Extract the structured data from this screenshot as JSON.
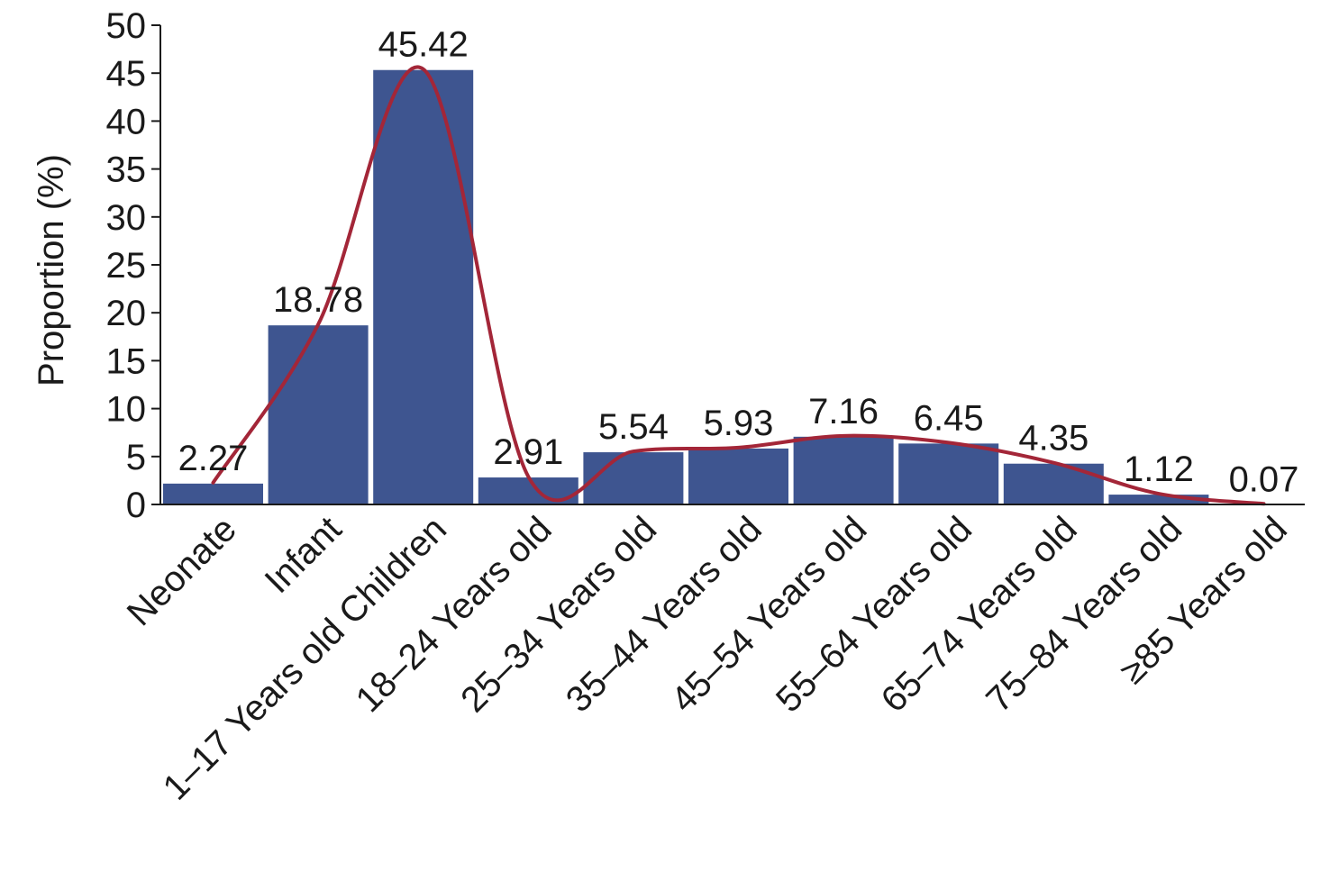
{
  "chart_data": {
    "type": "bar",
    "title": "",
    "xlabel": "",
    "ylabel": "Proportion (%)",
    "ylim": [
      0,
      50
    ],
    "yticks": [
      0,
      5,
      10,
      15,
      20,
      25,
      30,
      35,
      40,
      45,
      50
    ],
    "categories": [
      "Neonate",
      "Infant",
      "1–17 Years old Children",
      "18–24 Years old",
      "25–34 Years old",
      "35–44 Years old",
      "45–54 Years old",
      "55–64 Years old",
      "65–74 Years old",
      "75–84 Years old",
      "≥85 Years old"
    ],
    "values": [
      2.27,
      18.78,
      45.42,
      2.91,
      5.54,
      5.93,
      7.16,
      6.45,
      4.35,
      1.12,
      0.07
    ],
    "data_labels": [
      "2.27",
      "18.78",
      "45.42",
      "2.91",
      "5.54",
      "5.93",
      "7.16",
      "6.45",
      "4.35",
      "1.12",
      "0.07"
    ],
    "overlay": "smoothed trend line",
    "grid": false,
    "legend": "none"
  },
  "colors": {
    "bar": "#3E5590",
    "bar_edge": "#ffffff",
    "curve": "#A32638",
    "axis": "#1a1a1a"
  }
}
